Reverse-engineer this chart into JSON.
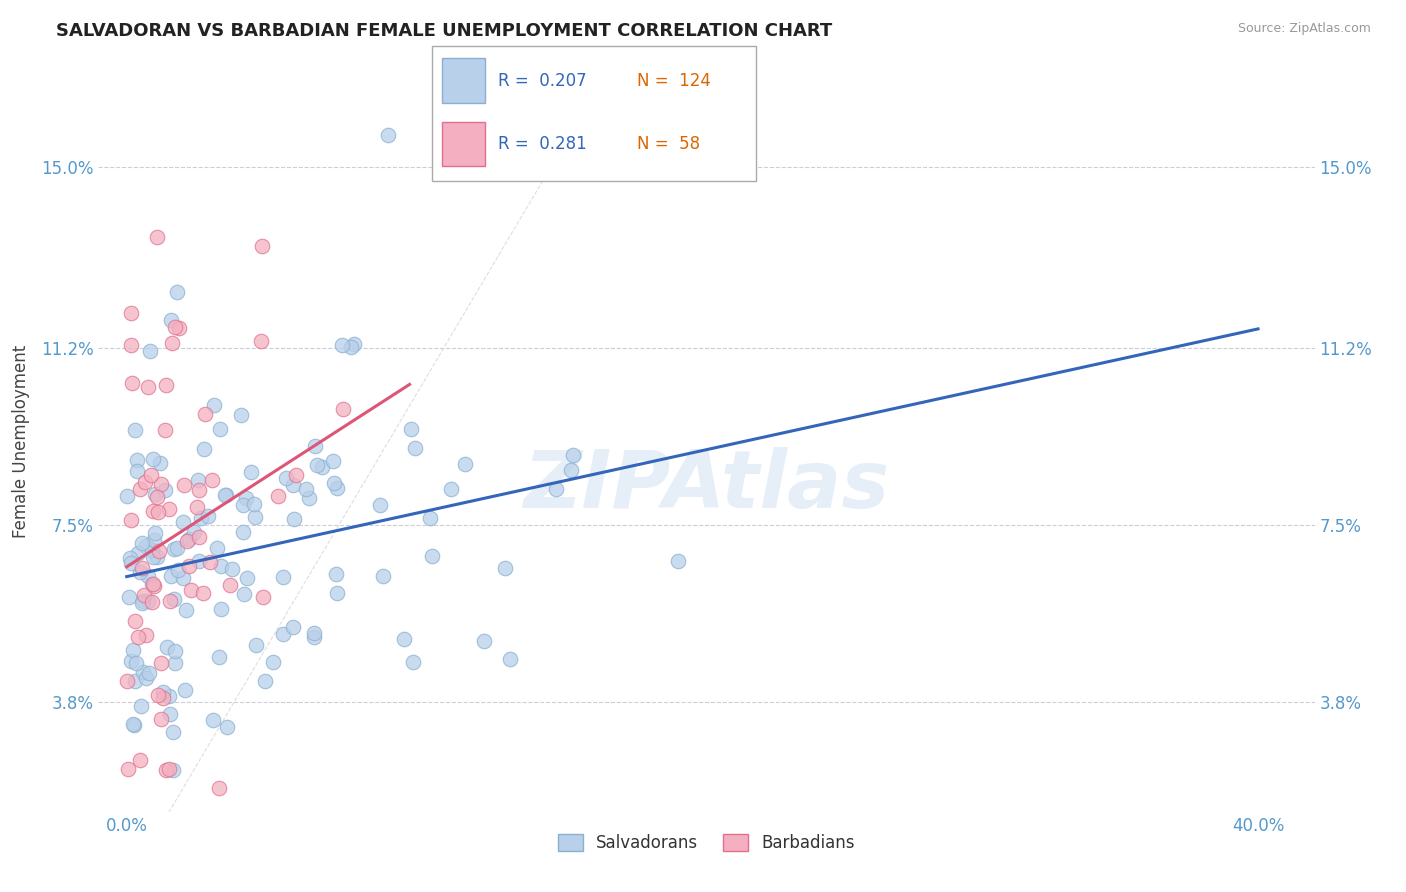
{
  "title": "SALVADORAN VS BARBADIAN FEMALE UNEMPLOYMENT CORRELATION CHART",
  "source": "Source: ZipAtlas.com",
  "xlabel_ticks": [
    "0.0%",
    "40.0%"
  ],
  "xlabel_vals": [
    0.0,
    40.0
  ],
  "ylabel_ticks": [
    "3.8%",
    "7.5%",
    "11.2%",
    "15.0%"
  ],
  "ylabel_vals": [
    3.8,
    7.5,
    11.2,
    15.0
  ],
  "xlim": [
    -1.0,
    42.0
  ],
  "ylim": [
    1.5,
    17.0
  ],
  "salvadoran_color": "#b8d0ea",
  "barbadian_color": "#f4b0c0",
  "salvadoran_edge": "#8ab0d0",
  "barbadian_edge": "#e07090",
  "blue_line_color": "#3366bb",
  "pink_line_color": "#dd5577",
  "diagonal_color": "#d0d0d0",
  "R_salv": 0.207,
  "N_salv": 124,
  "R_barb": 0.281,
  "N_barb": 58,
  "watermark": "ZIPAtlas"
}
